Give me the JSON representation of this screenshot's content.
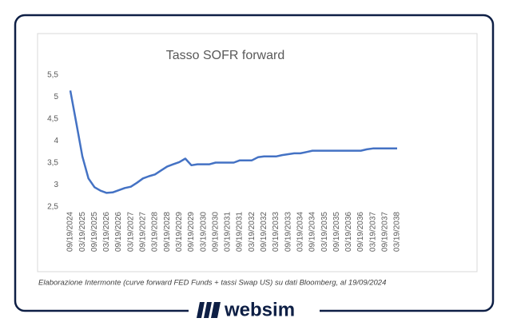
{
  "chart_data": {
    "type": "line",
    "title": "Tasso SOFR forward",
    "categories": [
      "09/19/2024",
      null,
      "03/19/2025",
      null,
      "09/19/2025",
      null,
      "03/19/2026",
      null,
      "09/19/2026",
      null,
      "03/19/2027",
      null,
      "09/19/2027",
      null,
      "03/19/2028",
      null,
      "09/19/2028",
      null,
      "03/19/2029",
      null,
      "09/19/2029",
      null,
      "03/19/2030",
      null,
      "09/19/2030",
      null,
      "03/19/2031",
      null,
      "09/19/2031",
      null,
      "03/19/2032",
      null,
      "09/19/2032",
      null,
      "03/19/2033",
      null,
      "09/19/2033",
      null,
      "03/19/2034",
      null,
      "09/19/2034",
      null,
      "03/19/2035",
      null,
      "09/19/2035",
      null,
      "03/19/2036",
      null,
      "09/19/2036",
      null,
      "03/19/2037",
      null,
      "09/19/2037",
      null,
      "03/19/2038"
    ],
    "values": [
      5.15,
      4.4,
      3.65,
      3.15,
      2.95,
      2.87,
      2.82,
      2.83,
      2.88,
      2.93,
      2.96,
      3.05,
      3.15,
      3.2,
      3.24,
      3.33,
      3.42,
      3.47,
      3.52,
      3.6,
      3.45,
      3.47,
      3.47,
      3.47,
      3.51,
      3.51,
      3.51,
      3.51,
      3.56,
      3.56,
      3.56,
      3.63,
      3.65,
      3.65,
      3.65,
      3.68,
      3.7,
      3.72,
      3.72,
      3.75,
      3.78,
      3.78,
      3.78,
      3.78,
      3.78,
      3.78,
      3.78,
      3.78,
      3.78,
      3.81,
      3.83,
      3.83,
      3.83,
      3.83,
      3.83
    ],
    "color": "#4472c4",
    "ylim": [
      2.5,
      5.5
    ],
    "yticks": [
      {
        "value": 2.5,
        "label": "2,5"
      },
      3,
      {
        "value": 3.5,
        "label": "3,5"
      },
      4,
      {
        "value": 4.5,
        "label": "4,5"
      },
      5,
      {
        "value": 5.5,
        "label": "5,5"
      }
    ],
    "grid": false
  },
  "footnote": "Elaborazione Intermonte (curve forward FED Funds + tassi Swap US) su dati Bloomberg, al 19/09/2024",
  "brand": "websim"
}
